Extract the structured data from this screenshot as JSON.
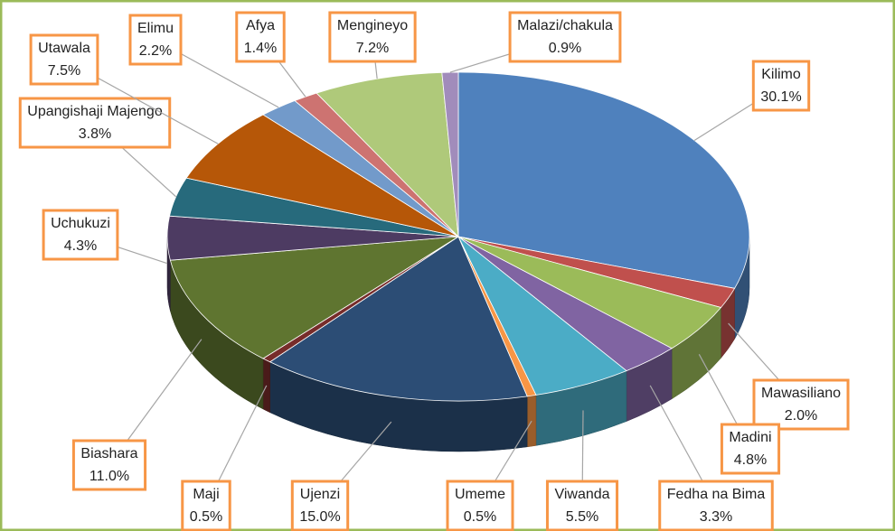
{
  "chart_data": {
    "type": "pie3d",
    "categories": [
      "Kilimo",
      "Mawasiliano",
      "Madini",
      "Fedha na Bima",
      "Viwanda",
      "Umeme",
      "Ujenzi",
      "Maji",
      "Biashara",
      "Uchukuzi",
      "Upangishaji Majengo",
      "Utawala",
      "Elimu",
      "Afya",
      "Mengineyo",
      "Malazi/chakula"
    ],
    "values": [
      30.1,
      2.0,
      4.8,
      3.3,
      5.5,
      0.5,
      15.0,
      0.5,
      11.0,
      4.3,
      3.8,
      7.5,
      2.2,
      1.4,
      7.2,
      0.9
    ],
    "value_labels": [
      "30.1%",
      "2.0%",
      "4.8%",
      "3.3%",
      "5.5%",
      "0.5%",
      "15.0%",
      "0.5%",
      "11.0%",
      "4.3%",
      "3.8%",
      "7.5%",
      "2.2%",
      "1.4%",
      "7.2%",
      "0.9%"
    ],
    "colors": [
      "#4f81bd",
      "#c0504d",
      "#9bbb59",
      "#8064a2",
      "#4bacc6",
      "#f79646",
      "#2c4d75",
      "#772c2a",
      "#5f7530",
      "#4d3b62",
      "#276a7c",
      "#b65708",
      "#729aca",
      "#cd7371",
      "#afc97a",
      "#a18cbb"
    ]
  }
}
